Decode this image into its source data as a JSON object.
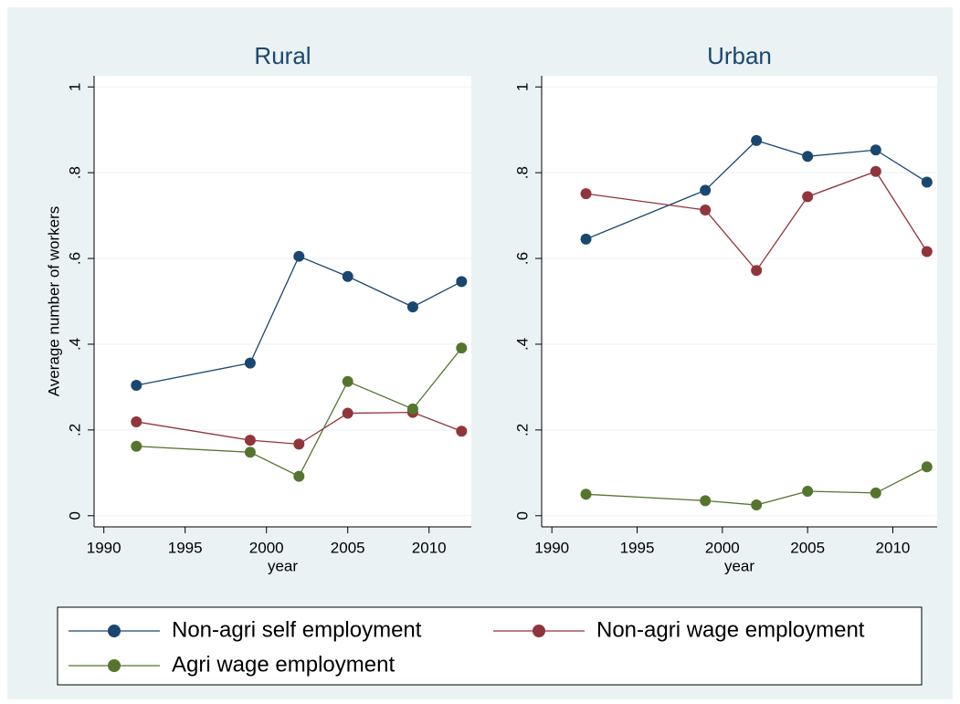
{
  "chart_data": [
    {
      "type": "line",
      "title": "Rural",
      "xlabel": "year",
      "ylabel": "Average number of workers",
      "x": [
        1992,
        1999,
        2002,
        2005,
        2009,
        2012
      ],
      "series": [
        {
          "name": "Non-agri self employment",
          "color": "#1a476f",
          "values": [
            0.304,
            0.356,
            0.605,
            0.558,
            0.487,
            0.546
          ]
        },
        {
          "name": "Non-agri wage employment",
          "color": "#90353b",
          "values": [
            0.219,
            0.176,
            0.167,
            0.239,
            0.241,
            0.197
          ]
        },
        {
          "name": "Agri wage employment",
          "color": "#55752f",
          "values": [
            0.162,
            0.148,
            0.092,
            0.313,
            0.249,
            0.391
          ]
        }
      ],
      "xlim": [
        1989.4,
        2012.6
      ],
      "ylim": [
        -0.026,
        1.026
      ],
      "xticks": [
        1990,
        1995,
        2000,
        2005,
        2010
      ],
      "yticks": [
        0,
        {
          "value": 0.2,
          "label": ".2"
        },
        {
          "value": 0.4,
          "label": ".4"
        },
        {
          "value": 0.6,
          "label": ".6"
        },
        {
          "value": 0.8,
          "label": ".8"
        },
        1
      ],
      "grid": true,
      "legend": "bottom"
    },
    {
      "type": "line",
      "title": "Urban",
      "xlabel": "year",
      "x": [
        1992,
        1999,
        2002,
        2005,
        2009,
        2012
      ],
      "series": [
        {
          "color": "#1a476f",
          "values": [
            0.645,
            0.759,
            0.875,
            0.838,
            0.853,
            0.778
          ]
        },
        {
          "color": "#90353b",
          "values": [
            0.751,
            0.713,
            0.572,
            0.744,
            0.803,
            0.616
          ]
        },
        {
          "color": "#55752f",
          "values": [
            0.05,
            0.035,
            0.025,
            0.057,
            0.053,
            0.114
          ]
        }
      ],
      "xlim": [
        1989.4,
        2012.6
      ],
      "ylim": [
        -0.026,
        1.026
      ],
      "xticks": [
        1990,
        1995,
        2000,
        2005,
        2010
      ],
      "yticks": [
        0,
        {
          "value": 0.2,
          "label": ".2"
        },
        {
          "value": 0.4,
          "label": ".4"
        },
        {
          "value": 0.6,
          "label": ".6"
        },
        {
          "value": 0.8,
          "label": ".8"
        },
        1
      ],
      "grid": true
    }
  ]
}
